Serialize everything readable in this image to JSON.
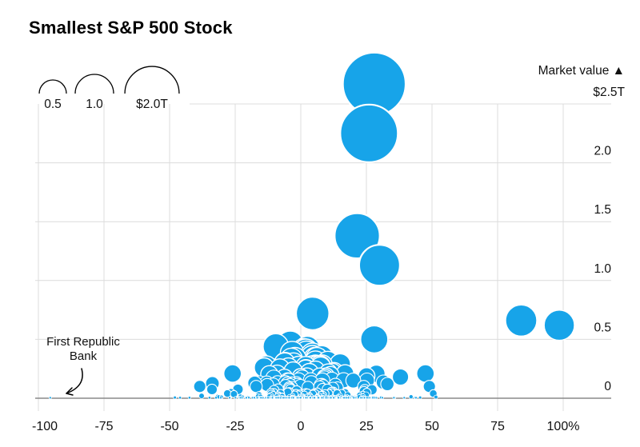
{
  "title": "Smallest S&P 500 Stock",
  "colors": {
    "bubble": "#17a4e9",
    "bubble_stroke": "#ffffff",
    "grid": "#dcdcdc",
    "axis_line": "#8a8a8a",
    "text": "#111111"
  },
  "legend": {
    "items": [
      {
        "label": "0.5",
        "value": 0.5
      },
      {
        "label": "1.0",
        "value": 1.0
      },
      {
        "label": "$2.0T",
        "value": 2.0
      }
    ]
  },
  "right_axis": {
    "title": "Market value ▲",
    "tick_labels": [
      "$2.5T",
      "2.0",
      "1.5",
      "1.0",
      "0.5",
      "0"
    ],
    "tick_values": [
      2.5,
      2.0,
      1.5,
      1.0,
      0.5,
      0
    ]
  },
  "x_axis": {
    "tick_labels": [
      "-100",
      "-75",
      "-50",
      "-25",
      "0",
      "25",
      "50",
      "75",
      "100%"
    ],
    "tick_values": [
      -100,
      -75,
      -50,
      -25,
      0,
      25,
      50,
      75,
      100
    ]
  },
  "annotation": {
    "lines": [
      "First Republic",
      "Bank"
    ],
    "target_pct": -95.5
  },
  "chart_data": {
    "type": "scatter",
    "title": "Smallest S&P 500 Stock",
    "x_unit": "percent_change_%",
    "y_unit": "market_value_trillion_usd",
    "x_range": [
      -100,
      100
    ],
    "y_range": [
      0,
      2.5
    ],
    "size_encodes": "market_value",
    "bubbles": [
      [
        28,
        2.67
      ],
      [
        26,
        2.25
      ],
      [
        21.5,
        1.38
      ],
      [
        30,
        1.13
      ],
      [
        4.5,
        0.72
      ],
      [
        84,
        0.66
      ],
      [
        98.5,
        0.62
      ],
      [
        28,
        0.5
      ],
      [
        -4,
        0.46
      ],
      [
        -9.5,
        0.44
      ],
      [
        2.5,
        0.42
      ],
      [
        8,
        0.35
      ],
      [
        -6,
        0.3
      ],
      [
        15,
        0.29
      ],
      [
        -14,
        0.26
      ],
      [
        12,
        0.22
      ],
      [
        47.5,
        0.21
      ],
      [
        -26,
        0.21
      ],
      [
        38,
        0.18
      ],
      [
        20,
        0.15
      ],
      [
        -13,
        0.13
      ],
      [
        33,
        0.12
      ],
      [
        49,
        0.1
      ],
      [
        -17,
        0.1
      ],
      [
        24,
        0.1
      ],
      [
        -38.5,
        0.1
      ],
      [
        50.5,
        0.04
      ],
      [
        -28,
        0.04
      ],
      [
        -25.5,
        0.035
      ],
      [
        -37.8,
        0.02
      ],
      [
        -23,
        0.015
      ],
      [
        42,
        0.012
      ],
      [
        51.5,
        0.01
      ],
      [
        -20,
        0.008
      ],
      [
        -48,
        0.006
      ],
      [
        45.5,
        0.006
      ],
      [
        -46,
        0.005
      ],
      [
        43.5,
        0.005
      ],
      [
        -42.4,
        0.005
      ],
      [
        -34.8,
        0.005
      ],
      [
        -32.3,
        0.005
      ],
      [
        -95.5,
        0.004
      ]
    ],
    "cluster": {
      "count": 430,
      "seed": 11,
      "pct_mean": 4,
      "pct_sd": 14,
      "pct_clip": [
        -45,
        51.5
      ],
      "value_min": 0.004,
      "value_scale": 0.4,
      "value_pow": 8,
      "center_pull": 1.5
    }
  }
}
